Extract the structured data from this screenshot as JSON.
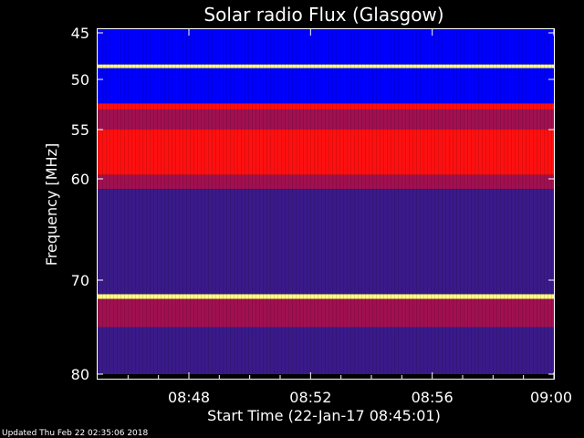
{
  "chart_data": {
    "type": "heatmap",
    "title": "Solar radio Flux (Glasgow)",
    "xlabel": "Start Time (22-Jan-17 08:45:01)",
    "ylabel": "Frequency [MHz]",
    "x_ticks": [
      "08:48",
      "08:52",
      "08:56",
      "09:00"
    ],
    "x_tick_minutes": [
      3,
      7,
      11,
      15
    ],
    "xlim_minutes": [
      0,
      15
    ],
    "y_ticks": [
      45,
      50,
      55,
      60,
      70,
      80
    ],
    "ylim": [
      45,
      80
    ],
    "footer": "Updated Thu Feb 22 02:35:06 2018",
    "colormap": [
      "#0000ff",
      "#3a1a8a",
      "#a01050",
      "#ff1010",
      "#ff6040",
      "#ffff80"
    ],
    "bands": [
      {
        "from": 44.7,
        "to": 48.4,
        "level": 0
      },
      {
        "from": 48.4,
        "to": 48.8,
        "level": 5
      },
      {
        "from": 48.8,
        "to": 52.4,
        "level": 0
      },
      {
        "from": 52.4,
        "to": 53.0,
        "level": 3
      },
      {
        "from": 53.0,
        "to": 55.0,
        "level": 2
      },
      {
        "from": 55.0,
        "to": 59.6,
        "level": 3
      },
      {
        "from": 59.6,
        "to": 61.0,
        "level": 2
      },
      {
        "from": 61.0,
        "to": 71.5,
        "level": 1
      },
      {
        "from": 71.5,
        "to": 72.0,
        "level": 5
      },
      {
        "from": 72.0,
        "to": 75.0,
        "level": 2
      },
      {
        "from": 75.0,
        "to": 80.0,
        "level": 1
      }
    ]
  }
}
